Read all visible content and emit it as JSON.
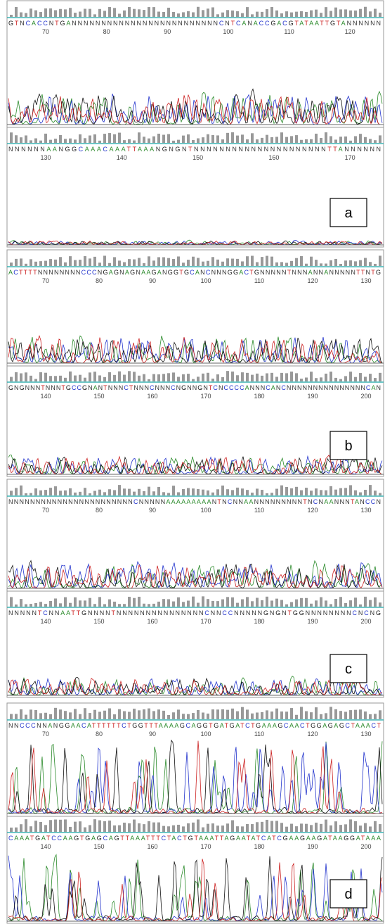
{
  "panels": [
    {
      "label": "a",
      "rows": [
        {
          "sequence": "GTNCACCNTGANNNNNNNNNNNNNNNNNNNNNNNNNCNTCANACCGACGTATAATTGTANNNNNN",
          "positions": [
            70,
            80,
            90,
            100,
            110,
            120
          ]
        },
        {
          "sequence": "NNNNNNAANGGCAAACAAATTAAANGNGNTNNNNNNNNNNNNNNNNNNNNNTTANNNNNN",
          "positions": [
            130,
            140,
            150,
            160,
            170
          ]
        }
      ]
    },
    {
      "label": "b",
      "rows": [
        {
          "sequence": "ACTTTTNNNNNNNNCCCNGAGNAGNAAGANGGTGCANCNNNGGACTGNNNNNTNNNANNANNNNNTTNTG",
          "positions": [
            70,
            80,
            90,
            100,
            110,
            120,
            130
          ]
        },
        {
          "sequence": "GNGNNNTNNNTGCCGNANTNNNCTNNNCNNNCNGNNGNTCNCCCCANNNCANCNNNNNNNNNNNNNNNCAN",
          "positions": [
            140,
            150,
            160,
            170,
            180,
            190,
            200
          ]
        }
      ]
    },
    {
      "label": "c",
      "rows": [
        {
          "sequence": "NNNNNNNNNNNNNNNNNNNNNNNCNNNNNAAAAAAAAANTNCNNAANNNNNNNNNTNCNAANNNTANCCN",
          "positions": [
            70,
            80,
            90,
            100,
            110,
            120,
            130
          ]
        },
        {
          "sequence": "NNNNNTCNNAATTGNNNNTNNNNNNNNNNNNNNNCNNCCNNNNNGNGNTGGNNNNNNNNCNCNG",
          "positions": [
            140,
            150,
            160,
            170,
            180,
            190,
            200
          ]
        }
      ]
    },
    {
      "label": "d",
      "rows": [
        {
          "sequence": "NNCCCNNANGGAACATTTTTTCTGGTTTAAAAGCAGGTGATGATCTGAAAGCAACTGGAGAGCTAAACT",
          "positions": [
            70,
            80,
            90,
            100,
            110,
            120,
            130
          ]
        },
        {
          "sequence": "CAAATGATCCAAGTGAGCAGTTAAATTTCTACTGTAAATTAGAATATCATCGAAGAAGATAAGGATAAA",
          "positions": [
            140,
            150,
            160,
            170,
            180,
            190,
            200
          ]
        }
      ]
    }
  ]
}
